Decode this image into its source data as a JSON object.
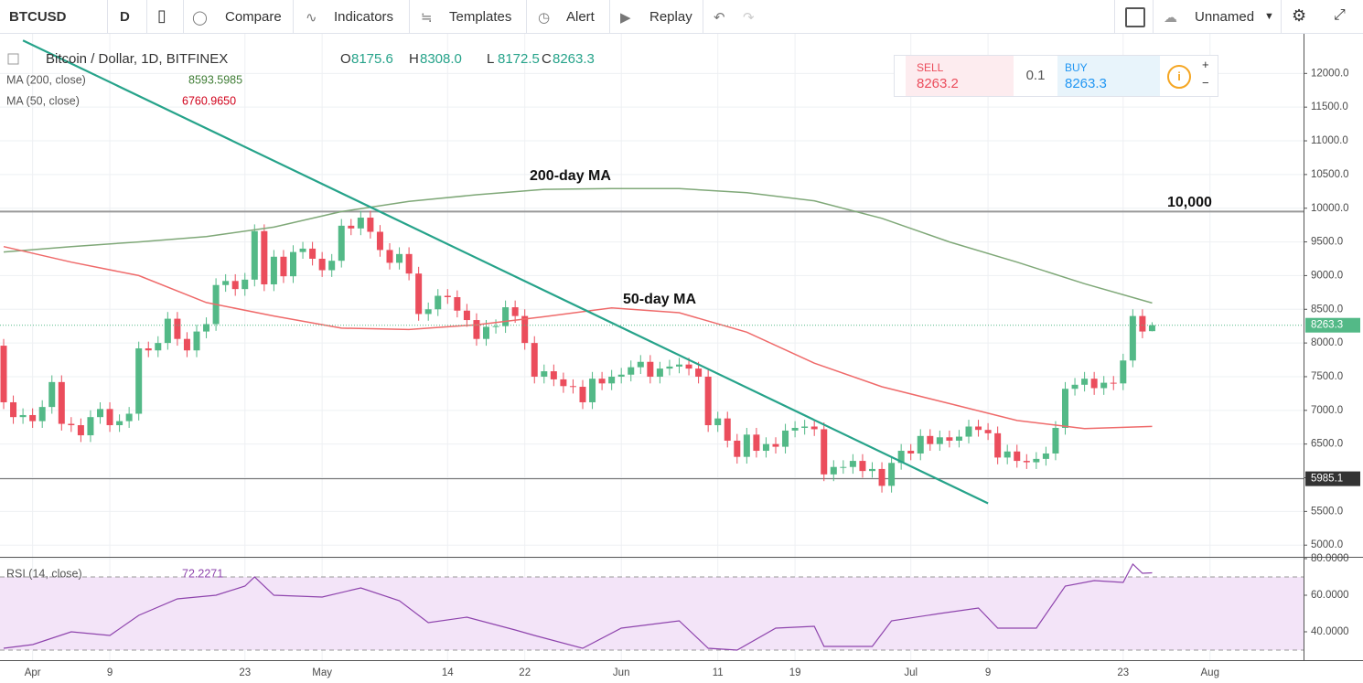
{
  "toolbar": {
    "symbol": "BTCUSD",
    "interval": "D",
    "buttons": [
      "Compare",
      "Indicators",
      "Templates",
      "Alert",
      "Replay"
    ],
    "layout_name": "Unnamed"
  },
  "trade": {
    "sell_label": "SELL",
    "sell_price": "8263.2",
    "spread": "0.1",
    "buy_label": "BUY",
    "buy_price": "8263.3"
  },
  "chart_data": [
    {
      "type": "candlestick",
      "title": "Bitcoin / Dollar, 1D, BITFINEX",
      "legend_ohlc": [
        [
          "O",
          "8175.6"
        ],
        [
          "H",
          "8308.0"
        ],
        [
          "L",
          "8172.5"
        ],
        [
          "C",
          "8263.3"
        ]
      ],
      "categories": [
        "Mar 29",
        "Mar 30",
        "Mar 31",
        "Apr 1",
        "Apr 2",
        "Apr 3",
        "Apr 4",
        "Apr 5",
        "Apr 6",
        "Apr 7",
        "Apr 8",
        "Apr 9",
        "Apr 10",
        "Apr 11",
        "Apr 12",
        "Apr 13",
        "Apr 14",
        "Apr 15",
        "Apr 16",
        "Apr 17",
        "Apr 18",
        "Apr 19",
        "Apr 20",
        "Apr 21",
        "Apr 22",
        "Apr 23",
        "Apr 24",
        "Apr 25",
        "Apr 26",
        "Apr 27",
        "Apr 28",
        "Apr 29",
        "Apr 30",
        "May 1",
        "May 2",
        "May 3",
        "May 4",
        "May 5",
        "May 6",
        "May 7",
        "May 8",
        "May 9",
        "May 10",
        "May 11",
        "May 12",
        "May 13",
        "May 14",
        "May 15",
        "May 16",
        "May 17",
        "May 18",
        "May 19",
        "May 20",
        "May 21",
        "May 22",
        "May 23",
        "May 24",
        "May 25",
        "May 26",
        "May 27",
        "May 28",
        "May 29",
        "May 30",
        "May 31",
        "Jun 1",
        "Jun 2",
        "Jun 3",
        "Jun 4",
        "Jun 5",
        "Jun 6",
        "Jun 7",
        "Jun 8",
        "Jun 9",
        "Jun 10",
        "Jun 11",
        "Jun 12",
        "Jun 13",
        "Jun 14",
        "Jun 15",
        "Jun 16",
        "Jun 17",
        "Jun 18",
        "Jun 19",
        "Jun 20",
        "Jun 21",
        "Jun 22",
        "Jun 23",
        "Jun 24",
        "Jun 25",
        "Jun 26",
        "Jun 27",
        "Jun 28",
        "Jun 29",
        "Jun 30",
        "Jul 1",
        "Jul 2",
        "Jul 3",
        "Jul 4",
        "Jul 5",
        "Jul 6",
        "Jul 7",
        "Jul 8",
        "Jul 9",
        "Jul 10",
        "Jul 11",
        "Jul 12",
        "Jul 13",
        "Jul 14",
        "Jul 15",
        "Jul 16",
        "Jul 17",
        "Jul 18",
        "Jul 19",
        "Jul 20",
        "Jul 21",
        "Jul 22",
        "Jul 23",
        "Jul 24",
        "Jul 25",
        "Jul 26"
      ],
      "open": [
        7960,
        7120,
        6900,
        6930,
        6840,
        7050,
        7420,
        6800,
        6780,
        6630,
        6900,
        7020,
        6780,
        6840,
        6950,
        7920,
        7890,
        8000,
        8360,
        8060,
        7890,
        8170,
        8280,
        8860,
        8920,
        8800,
        8940,
        9660,
        8870,
        9280,
        8990,
        9350,
        9400,
        9250,
        9080,
        9220,
        9740,
        9700,
        9860,
        9650,
        9380,
        9190,
        9320,
        9030,
        8430,
        8500,
        8700,
        8680,
        8480,
        8340,
        8060,
        8240,
        8250,
        8530,
        8400,
        8000,
        7500,
        7580,
        7460,
        7360,
        7350,
        7120,
        7470,
        7400,
        7500,
        7530,
        7640,
        7720,
        7500,
        7620,
        7650,
        7680,
        7620,
        7500,
        6780,
        6880,
        6550,
        6310,
        6640,
        6400,
        6500,
        6460,
        6700,
        6740,
        6760,
        6720,
        6050,
        6160,
        6160,
        6250,
        6100,
        6130,
        5880,
        6220,
        6400,
        6360,
        6620,
        6500,
        6600,
        6550,
        6610,
        6760,
        6710,
        6660,
        6300,
        6390,
        6250,
        6230,
        6280,
        6360,
        6740,
        7320,
        7380,
        7470,
        7330,
        7410,
        7400,
        7740,
        8400,
        8175.6
      ],
      "high": [
        8060,
        7220,
        7030,
        7030,
        7150,
        7520,
        7520,
        6900,
        6880,
        7000,
        7120,
        7120,
        6940,
        7050,
        8020,
        8020,
        8100,
        8460,
        8460,
        8160,
        8270,
        8380,
        8960,
        9020,
        9020,
        9040,
        9760,
        9760,
        9380,
        9380,
        9450,
        9500,
        9500,
        9350,
        9320,
        9840,
        9840,
        9960,
        9960,
        9750,
        9480,
        9420,
        9420,
        9130,
        8600,
        8800,
        8800,
        8780,
        8580,
        8440,
        8340,
        8350,
        8630,
        8630,
        8500,
        8100,
        7680,
        7680,
        7560,
        7460,
        7450,
        7570,
        7570,
        7600,
        7630,
        7740,
        7820,
        7820,
        7720,
        7750,
        7780,
        7780,
        7720,
        7600,
        6980,
        6980,
        6650,
        6740,
        6740,
        6600,
        6600,
        6800,
        6840,
        6860,
        6860,
        6820,
        6260,
        6260,
        6350,
        6350,
        6230,
        6230,
        6320,
        6500,
        6500,
        6720,
        6720,
        6700,
        6700,
        6710,
        6860,
        6860,
        6810,
        6760,
        6490,
        6490,
        6350,
        6380,
        6460,
        6840,
        7420,
        7480,
        7570,
        7570,
        7510,
        7510,
        7840,
        8500,
        8500,
        8308
      ],
      "low": [
        7020,
        6800,
        6800,
        6740,
        6740,
        6950,
        6700,
        6680,
        6530,
        6530,
        6800,
        6680,
        6680,
        6740,
        6850,
        7790,
        7790,
        7900,
        7960,
        7790,
        7790,
        8070,
        8180,
        8760,
        8700,
        8700,
        8840,
        8770,
        8770,
        8890,
        8890,
        9250,
        9150,
        8980,
        8980,
        9120,
        9600,
        9600,
        9550,
        9280,
        9090,
        9090,
        8930,
        8330,
        8330,
        8400,
        8580,
        8380,
        8240,
        7960,
        7960,
        8140,
        8150,
        8300,
        7900,
        7400,
        7400,
        7360,
        7260,
        7250,
        7020,
        7020,
        7300,
        7300,
        7400,
        7430,
        7540,
        7400,
        7400,
        7520,
        7550,
        7520,
        7400,
        6680,
        6680,
        6450,
        6210,
        6210,
        6300,
        6300,
        6360,
        6360,
        6600,
        6640,
        6620,
        5950,
        5950,
        6060,
        6060,
        6000,
        6000,
        5780,
        5780,
        6120,
        6260,
        6260,
        6400,
        6400,
        6450,
        6450,
        6510,
        6610,
        6560,
        6200,
        6200,
        6150,
        6130,
        6130,
        6180,
        6260,
        6640,
        7220,
        7280,
        7230,
        7230,
        7300,
        7300,
        7640,
        8070,
        8172.5
      ],
      "close": [
        7120,
        6900,
        6930,
        6840,
        7050,
        7420,
        6800,
        6780,
        6630,
        6900,
        7020,
        6780,
        6840,
        6950,
        7920,
        7890,
        8000,
        8360,
        8060,
        7890,
        8170,
        8280,
        8860,
        8920,
        8800,
        8940,
        9660,
        8870,
        9280,
        8990,
        9350,
        9400,
        9250,
        9080,
        9220,
        9740,
        9700,
        9860,
        9650,
        9380,
        9190,
        9320,
        9030,
        8430,
        8500,
        8700,
        8680,
        8480,
        8340,
        8060,
        8240,
        8250,
        8530,
        8400,
        8000,
        7500,
        7580,
        7460,
        7360,
        7350,
        7120,
        7470,
        7400,
        7500,
        7530,
        7640,
        7720,
        7500,
        7620,
        7650,
        7680,
        7620,
        7500,
        6780,
        6880,
        6550,
        6310,
        6640,
        6400,
        6500,
        6460,
        6700,
        6740,
        6760,
        6720,
        6050,
        6160,
        6160,
        6250,
        6100,
        6130,
        5880,
        6220,
        6400,
        6360,
        6620,
        6500,
        6600,
        6550,
        6610,
        6760,
        6710,
        6660,
        6300,
        6390,
        6250,
        6230,
        6280,
        6360,
        6740,
        7320,
        7380,
        7470,
        7330,
        7410,
        7400,
        7740,
        8400,
        8170,
        8263.3
      ],
      "up_color": "#53b987",
      "down_color": "#eb4d5c",
      "lines": [
        {
          "name": "MA (200, close)",
          "color": "#7fa878",
          "x": [
            "Mar 29",
            "Apr 5",
            "Apr 12",
            "Apr 19",
            "Apr 26",
            "May 3",
            "May 10",
            "May 17",
            "May 24",
            "May 31",
            "Jun 7",
            "Jun 14",
            "Jun 21",
            "Jun 28",
            "Jul 5",
            "Jul 12",
            "Jul 19",
            "Jul 26"
          ],
          "values": [
            9350,
            9430,
            9500,
            9580,
            9720,
            9950,
            10100,
            10200,
            10280,
            10290,
            10290,
            10230,
            10110,
            9850,
            9500,
            9200,
            8880,
            8593.5985
          ]
        },
        {
          "name": "MA (50, close)",
          "color": "#ef6a6a",
          "legend_value": {
            "value": 6760.965,
            "label": "6760.9650"
          },
          "x": [
            "Mar 29",
            "Apr 5",
            "Apr 12",
            "Apr 19",
            "Apr 26",
            "May 3",
            "May 10",
            "May 17",
            "May 24",
            "May 31",
            "Jun 7",
            "Jun 14",
            "Jun 21",
            "Jun 28",
            "Jul 5",
            "Jul 12",
            "Jul 19",
            "Jul 26"
          ],
          "values": [
            9430,
            9200,
            9000,
            8600,
            8400,
            8220,
            8200,
            8270,
            8390,
            8520,
            8450,
            8160,
            7700,
            7350,
            7100,
            6850,
            6730,
            6760.965
          ]
        }
      ],
      "hlines": [
        9950,
        5985.1
      ],
      "trendline": {
        "x": [
          "Mar 31",
          "Jul 9"
        ],
        "y": [
          12490,
          5620
        ],
        "color": "#26a38a"
      },
      "annotations": [
        "200-day MA",
        "50-day MA",
        "10,000"
      ],
      "ylim": [
        4840,
        12520
      ],
      "yticks": [
        {
          "value": 5000,
          "label": "5000.0"
        },
        {
          "value": 5500,
          "label": "5500.0"
        },
        {
          "value": 6000,
          "label": "6000.0"
        },
        {
          "value": 6500,
          "label": "6500.0"
        },
        {
          "value": 7000,
          "label": "7000.0"
        },
        {
          "value": 7500,
          "label": "7500.0"
        },
        {
          "value": 8000,
          "label": "8000.0"
        },
        {
          "value": 8500,
          "label": "8500.0"
        },
        {
          "value": 9000,
          "label": "9000.0"
        },
        {
          "value": 9500,
          "label": "9500.0"
        },
        {
          "value": 10000,
          "label": "10000.0"
        },
        {
          "value": 10500,
          "label": "10500.0"
        },
        {
          "value": 11000,
          "label": "11000.0"
        },
        {
          "value": 11500,
          "label": "11500.0"
        },
        {
          "value": 12000,
          "label": "12000.0"
        }
      ],
      "xticks": [
        {
          "value": "Apr 1",
          "label": "Apr"
        },
        {
          "value": "Apr 9",
          "label": "9"
        },
        {
          "value": "Apr 23",
          "label": "23"
        },
        {
          "value": "May 1",
          "label": "May"
        },
        {
          "value": "May 14",
          "label": "14"
        },
        {
          "value": "May 22",
          "label": "22"
        },
        {
          "value": "Jun 1",
          "label": "Jun"
        },
        {
          "value": "Jun 11",
          "label": "11"
        },
        {
          "value": "Jun 19",
          "label": "19"
        },
        {
          "value": "Jul 1",
          "label": "Jul"
        },
        {
          "value": "Jul 9",
          "label": "9"
        },
        {
          "value": "Jul 23",
          "label": "23"
        },
        {
          "value": "Aug 1",
          "label": "Aug"
        }
      ],
      "grid": true
    },
    {
      "type": "line",
      "title": "RSI (14, close)",
      "x": [
        "Mar 29",
        "Apr 1",
        "Apr 5",
        "Apr 9",
        "Apr 12",
        "Apr 16",
        "Apr 20",
        "Apr 23",
        "Apr 24",
        "Apr 26",
        "May 1",
        "May 5",
        "May 9",
        "May 12",
        "May 16",
        "May 21",
        "May 23",
        "May 28",
        "Jun 1",
        "Jun 7",
        "Jun 10",
        "Jun 13",
        "Jun 17",
        "Jun 21",
        "Jun 22",
        "Jun 27",
        "Jun 29",
        "Jul 4",
        "Jul 8",
        "Jul 10",
        "Jul 14",
        "Jul 17",
        "Jul 20",
        "Jul 23",
        "Jul 24",
        "Jul 25",
        "Jul 26"
      ],
      "series": [
        {
          "name": "RSI",
          "color": "#8e44ad",
          "values": [
            31,
            33,
            40,
            38,
            49,
            58,
            60,
            65,
            70,
            60,
            59,
            64,
            57,
            45,
            48,
            41,
            38,
            31,
            42,
            46,
            31,
            30,
            42,
            43,
            32,
            32,
            46,
            50,
            53,
            42,
            42,
            65,
            68,
            67,
            77,
            72,
            72.2271
          ]
        }
      ],
      "bands": [
        30,
        70
      ],
      "band_color": "#f3e4f8",
      "ylim": [
        24.5,
        81.5
      ],
      "yticks": [
        {
          "value": 40,
          "label": "40.0000"
        },
        {
          "value": 60,
          "label": "60.0000"
        },
        {
          "value": 80,
          "label": "80.0000"
        }
      ],
      "grid": true
    }
  ]
}
